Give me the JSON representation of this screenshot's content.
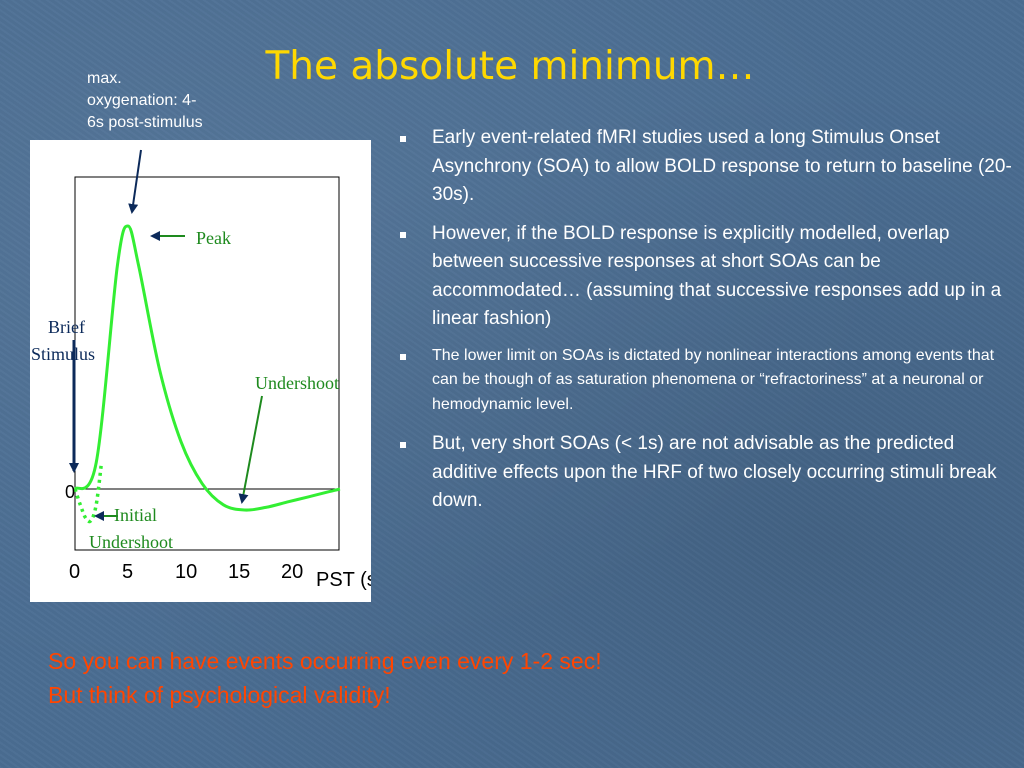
{
  "slide": {
    "title": "The absolute minimum…",
    "note_lines": [
      "max.",
      "oxygenation: 4-",
      "6s post-stimulus"
    ],
    "colors": {
      "title": "#ffd800",
      "footer": "#ff4500",
      "background": "#4a6d92",
      "curve": "#33ee33",
      "arrow": "#0c2a5a"
    }
  },
  "figure": {
    "labels": {
      "peak": "Peak",
      "brief_stimulus": [
        "Brief",
        "Stimulus"
      ],
      "undershoot": "Undershoot",
      "initial_undershoot": [
        "Initial",
        "Undershoot"
      ]
    },
    "chart_data": {
      "type": "line",
      "xlabel": "PST (s)",
      "x_ticks": [
        "0",
        "5",
        "10",
        "15",
        "20"
      ],
      "y_ticks": [
        "0"
      ],
      "xlim": [
        0,
        25
      ],
      "series": [
        {
          "style": "solid",
          "x": [
            0,
            2,
            4,
            5,
            6,
            8,
            10,
            12,
            14,
            16,
            18,
            20,
            22,
            24,
            25
          ],
          "y": [
            0,
            0.1,
            0.85,
            1.0,
            0.85,
            0.45,
            0.18,
            0.02,
            -0.06,
            -0.08,
            -0.07,
            -0.05,
            -0.03,
            -0.01,
            0
          ]
        },
        {
          "style": "dotted",
          "x": [
            0,
            0.5,
            1.0,
            1.5,
            2.0,
            2.5
          ],
          "y": [
            0,
            -0.06,
            -0.11,
            -0.12,
            -0.06,
            0.1
          ]
        }
      ]
    }
  },
  "bullets": [
    {
      "text": "Early event-related fMRI studies used a long Stimulus Onset Asynchrony (SOA) to allow BOLD response to return to baseline (20-30s).",
      "size": "normal"
    },
    {
      "text": "However, if the BOLD response is explicitly modelled, overlap between successive responses at short SOAs can be accommodated… (assuming that successive responses add up in a linear fashion)",
      "size": "normal"
    },
    {
      "text": "The lower limit on SOAs is dictated by nonlinear interactions among events that can be though of as saturation phenomena or “refractoriness” at a neuronal or hemodynamic level.",
      "size": "small"
    },
    {
      "text": "But, very short SOAs (< 1s) are not advisable as the predicted additive effects upon the HRF of two closely occurring stimuli break down.",
      "size": "normal"
    }
  ],
  "footer": [
    "So you can have events occurring even every 1-2 sec!",
    "But think of psychological validity!"
  ]
}
